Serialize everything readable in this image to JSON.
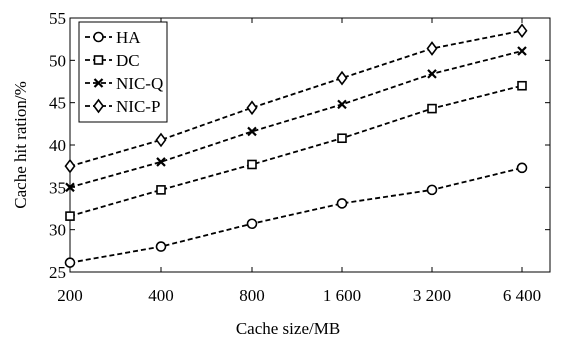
{
  "chart_data": {
    "type": "line",
    "title": "",
    "xlabel": "Cache size/MB",
    "ylabel": "Cache hit ration/%",
    "categories": [
      "200",
      "400",
      "800",
      "1 600",
      "3 200",
      "6 400"
    ],
    "ylim": [
      25,
      55
    ],
    "yticks": [
      "25",
      "30",
      "35",
      "40",
      "45",
      "50",
      "55"
    ],
    "grid": false,
    "legend": "top-left",
    "series": [
      {
        "name": "HA",
        "marker": "circle",
        "values": [
          26.1,
          28.0,
          30.7,
          33.1,
          34.7,
          37.3
        ]
      },
      {
        "name": "DC",
        "marker": "square",
        "values": [
          31.6,
          34.7,
          37.7,
          40.8,
          44.3,
          47.0
        ]
      },
      {
        "name": "NIC-Q",
        "marker": "x",
        "values": [
          35.0,
          38.0,
          41.6,
          44.8,
          48.4,
          51.1
        ]
      },
      {
        "name": "NIC-P",
        "marker": "diamond",
        "values": [
          37.5,
          40.6,
          44.4,
          47.9,
          51.4,
          53.5
        ]
      }
    ]
  }
}
